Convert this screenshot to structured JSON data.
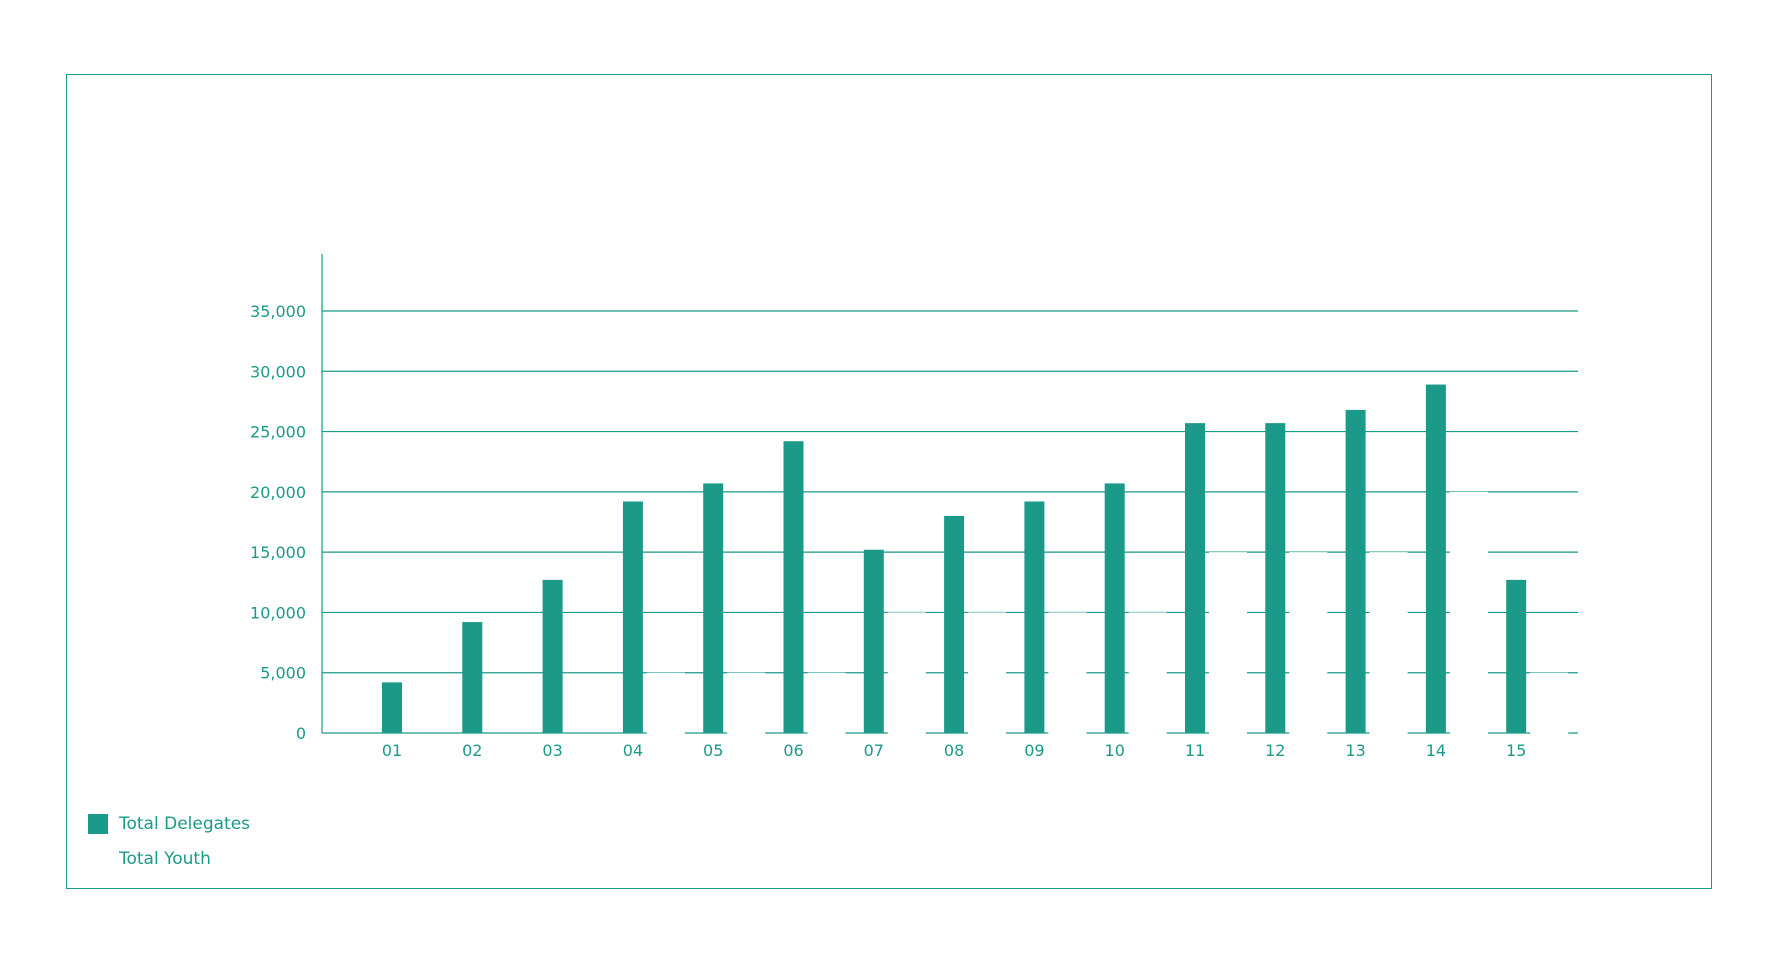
{
  "colors": {
    "delegates": "#1b9a8a",
    "youth": "#ffffff",
    "frame": "#1b9a8a",
    "grid": "#1b9a8a",
    "text": "#1b9a8a"
  },
  "chart_data": {
    "type": "bar",
    "categories": [
      "01",
      "02",
      "03",
      "04",
      "05",
      "06",
      "07",
      "08",
      "09",
      "10",
      "11",
      "12",
      "13",
      "14",
      "15"
    ],
    "series": [
      {
        "name": "Total Delegates",
        "color": "#1b9a8a",
        "values": [
          4200,
          9200,
          12700,
          19200,
          20700,
          24200,
          15200,
          18000,
          19200,
          20700,
          25700,
          25700,
          26800,
          28900,
          12700
        ]
      },
      {
        "name": "Total Youth",
        "color": "#ffffff",
        "values": [
          0,
          0,
          0,
          5000,
          5000,
          5000,
          10000,
          10000,
          10000,
          10000,
          15000,
          15000,
          15000,
          20000,
          5000
        ]
      }
    ],
    "y_ticks": [
      "0",
      "5,000",
      "10,000",
      "15,000",
      "20,000",
      "25,000",
      "30,000",
      "35,000"
    ],
    "ylim": [
      0,
      35000
    ],
    "grid": true,
    "legend_position": "bottom-left"
  },
  "legend": {
    "items": [
      {
        "label": "Total Delegates"
      },
      {
        "label": "Total Youth"
      }
    ]
  }
}
